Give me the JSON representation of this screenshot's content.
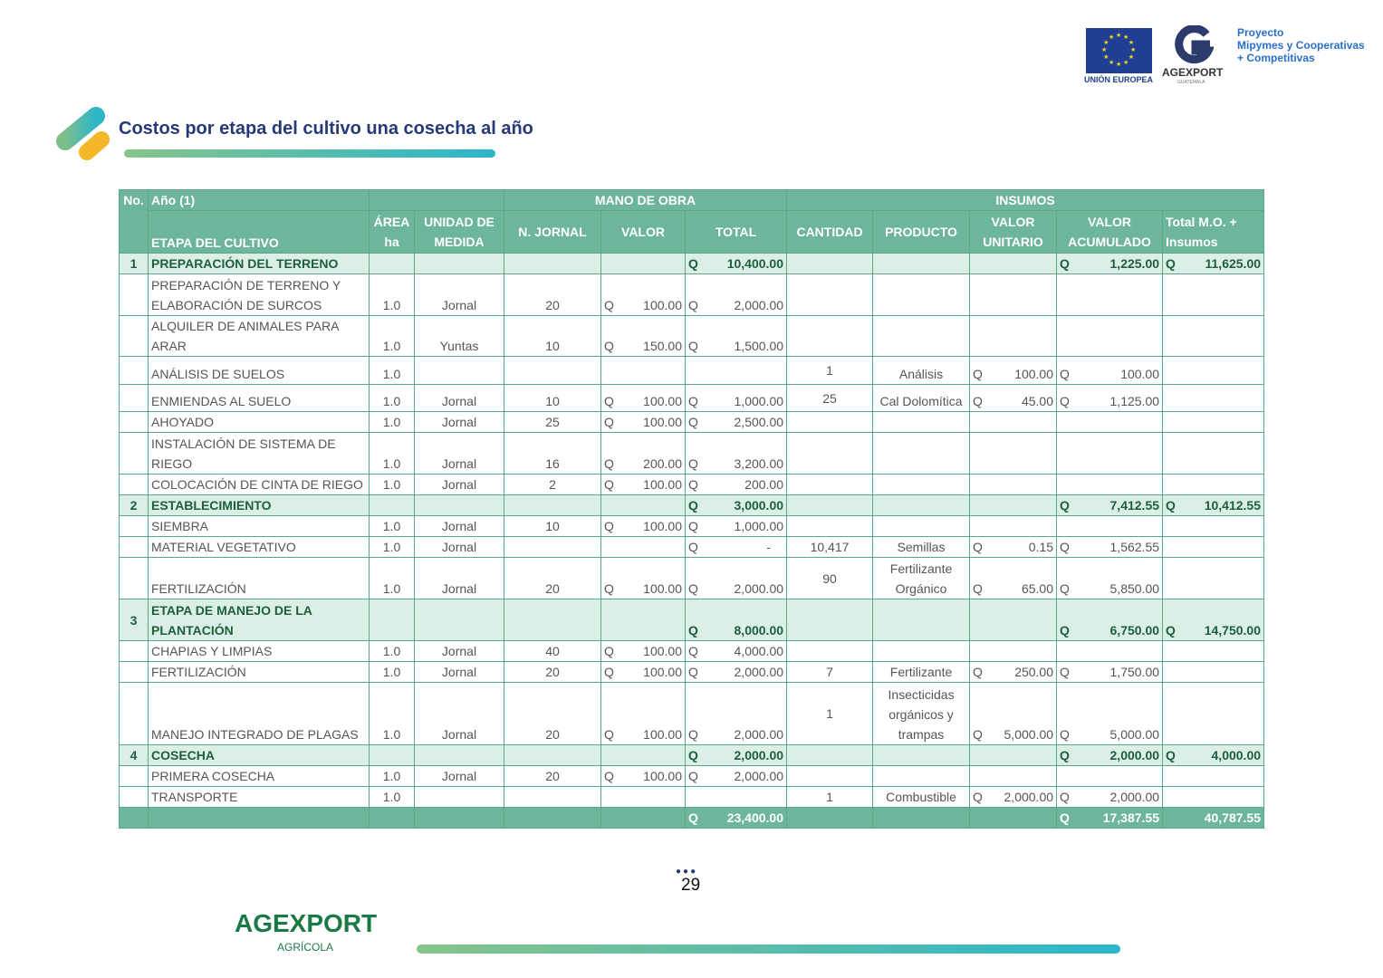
{
  "header": {
    "eu_label": "UNIÓN EUROPEA",
    "agexport_name": "AGEXPORT",
    "agexport_sub": "GUATEMALA",
    "project_lines": [
      "Proyecto",
      "Mipymes y Cooperativas",
      "+ Competitivas"
    ]
  },
  "title": "Costos por etapa del cultivo una cosecha al año",
  "table": {
    "currency": "Q",
    "headers": {
      "no": "No.",
      "year": "Año (1)",
      "mano_de_obra": "MANO DE OBRA",
      "insumos": "INSUMOS",
      "etapa": "ETAPA DEL CULTIVO",
      "area": "ÁREA ha",
      "unidad": "UNIDAD DE MEDIDA",
      "jornal": "N. JORNAL",
      "valor": "VALOR",
      "total": "TOTAL",
      "cantidad": "CANTIDAD",
      "producto": "PRODUCTO",
      "unitario": "VALOR UNITARIO",
      "acumulado": "VALOR ACUMULADO",
      "total_mo": "Total M.O. + Insumos"
    },
    "rows": [
      {
        "type": "sec",
        "no": "1",
        "etapa": "PREPARACIÓN DEL TERRENO",
        "total": "10,400.00",
        "acumulado": "1,225.00",
        "total_mo": "11,625.00"
      },
      {
        "etapa": "PREPARACIÓN DE TERRENO Y ELABORACIÓN DE SURCOS",
        "area": "1.0",
        "unidad": "Jornal",
        "jornal": "20",
        "valor": "100.00",
        "total": "2,000.00",
        "h": 46
      },
      {
        "etapa": "ALQUILER DE ANIMALES PARA ARAR",
        "area": "1.0",
        "unidad": "Yuntas",
        "jornal": "10",
        "valor": "150.00",
        "total": "1,500.00",
        "h": 30
      },
      {
        "etapa": "ANÁLISIS DE SUELOS",
        "area": "1.0",
        "cantidad": "1",
        "producto": "Análisis",
        "unitario": "100.00",
        "acumulado": "100.00",
        "h": 31
      },
      {
        "etapa": "ENMIENDAS AL SUELO",
        "area": "1.0",
        "unidad": "Jornal",
        "jornal": "10",
        "valor": "100.00",
        "total": "1,000.00",
        "cantidad": "25",
        "producto": "Cal Dolomítica",
        "unitario": "45.00",
        "acumulado": "1,125.00",
        "h": 30
      },
      {
        "etapa": "AHOYADO",
        "area": "1.0",
        "unidad": "Jornal",
        "jornal": "25",
        "valor": "100.00",
        "total": "2,500.00"
      },
      {
        "etapa": "INSTALACIÓN DE SISTEMA DE RIEGO",
        "area": "1.0",
        "unidad": "Jornal",
        "jornal": "16",
        "valor": "200.00",
        "total": "3,200.00",
        "h": 46
      },
      {
        "etapa": "COLOCACIÓN DE CINTA DE RIEGO",
        "area": "1.0",
        "unidad": "Jornal",
        "jornal": "2",
        "valor": "100.00",
        "total": "200.00"
      },
      {
        "type": "sec",
        "no": "2",
        "etapa": "ESTABLECIMIENTO",
        "total": "3,000.00",
        "acumulado": "7,412.55",
        "total_mo": "10,412.55"
      },
      {
        "etapa": "SIEMBRA",
        "area": "1.0",
        "unidad": "Jornal",
        "jornal": "10",
        "valor": "100.00",
        "total": "1,000.00"
      },
      {
        "etapa": "MATERIAL VEGETATIVO",
        "area": "1.0",
        "unidad": "Jornal",
        "total": "-",
        "cantidad": "10,417",
        "producto": "Semillas",
        "unitario": "0.15",
        "acumulado": "1,562.55"
      },
      {
        "etapa": "FERTILIZACIÓN",
        "area": "1.0",
        "unidad": "Jornal",
        "jornal": "20",
        "valor": "100.00",
        "total": "2,000.00",
        "cantidad": "90",
        "producto": "Fertilizante Orgánico",
        "unitario": "65.00",
        "acumulado": "5,850.00",
        "h": 46
      },
      {
        "type": "sec",
        "no": "3",
        "etapa": "ETAPA DE MANEJO DE LA PLANTACIÓN",
        "total": "8,000.00",
        "acumulado": "6,750.00",
        "total_mo": "14,750.00",
        "h": 46
      },
      {
        "etapa": "CHAPIAS Y LIMPIAS",
        "area": "1.0",
        "unidad": "Jornal",
        "jornal": "40",
        "valor": "100.00",
        "total": "4,000.00"
      },
      {
        "etapa": "FERTILIZACIÓN",
        "area": "1.0",
        "unidad": "Jornal",
        "jornal": "20",
        "valor": "100.00",
        "total": "2,000.00",
        "cantidad": "7",
        "producto": "Fertilizante",
        "unitario": "250.00",
        "acumulado": "1,750.00"
      },
      {
        "etapa": "MANEJO INTEGRADO DE PLAGAS",
        "area": "1.0",
        "unidad": "Jornal",
        "jornal": "20",
        "valor": "100.00",
        "total": "2,000.00",
        "cantidad": "1",
        "producto": "Insecticidas orgánicos y trampas",
        "unitario": "5,000.00",
        "acumulado": "5,000.00",
        "h": 69
      },
      {
        "type": "sec",
        "no": "4",
        "etapa": "COSECHA",
        "total": "2,000.00",
        "acumulado": "2,000.00",
        "total_mo": "4,000.00"
      },
      {
        "etapa": "PRIMERA COSECHA",
        "area": "1.0",
        "unidad": "Jornal",
        "jornal": "20",
        "valor": "100.00",
        "total": "2,000.00"
      },
      {
        "etapa": "TRANSPORTE",
        "area": "1.0",
        "cantidad": "1",
        "producto": "Combustible",
        "unitario": "2,000.00",
        "acumulado": "2,000.00"
      }
    ],
    "totals": {
      "total": "23,400.00",
      "acumulado": "17,387.55",
      "total_mo": "40,787.55"
    }
  },
  "footer": {
    "page_number": "29",
    "brand": "AGEXPORT",
    "brand_sub": "AGRÍCOLA"
  }
}
